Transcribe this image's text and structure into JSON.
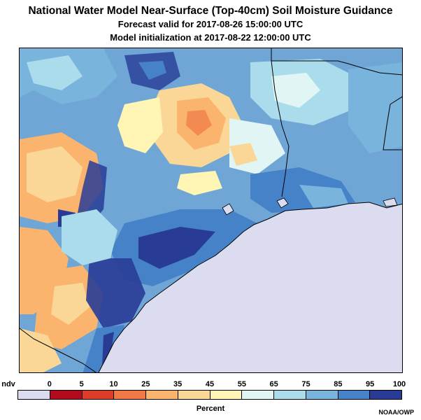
{
  "header": {
    "title": "National Water Model Near-Surface (Top-40cm) Soil Moisture Guidance",
    "forecast": "Forecast valid for 2017-08-26 15:00:00 UTC",
    "init": "Model initialization at 2017-08-22 12:00:00 UTC"
  },
  "map": {
    "water_color": "#dcdcf0",
    "background_color": "#6fa6d6",
    "border_color": "#000000"
  },
  "legend": {
    "unit": "Percent",
    "ticks": [
      "ndv",
      "0",
      "5",
      "10",
      "25",
      "35",
      "45",
      "55",
      "65",
      "75",
      "85",
      "95",
      "100"
    ],
    "colors": [
      "#dcdcf0",
      "#b40a1e",
      "#dc3c28",
      "#f07846",
      "#fab46e",
      "#fad796",
      "#fff5b4",
      "#e1f5f5",
      "#aadcec",
      "#78b4dc",
      "#4682c8",
      "#283c96"
    ]
  },
  "credit": "NOAA/OWP"
}
